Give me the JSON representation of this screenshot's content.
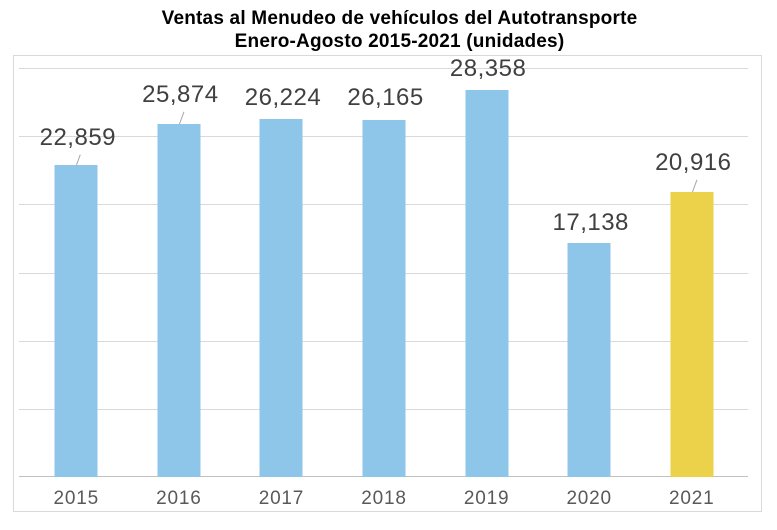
{
  "title": {
    "line1": "Ventas al Menudeo de vehículos del Autotransporte",
    "line2": "Enero-Agosto 2015-2021 (unidades)"
  },
  "colors": {
    "bar_default": "#8DC6E9",
    "bar_highlight": "#EBD24A",
    "gridline": "#d9d9d9",
    "axis_line": "#c0c0c0",
    "plot_border": "#d9d9d9",
    "data_label": "#404040",
    "category_label": "#595959",
    "leader_line": "#a6a6a6",
    "title_text": "#000000"
  },
  "chart_data": {
    "type": "bar",
    "title": "Ventas al Menudeo de vehículos del Autotransporte Enero-Agosto 2015-2021 (unidades)",
    "categories": [
      "2015",
      "2016",
      "2017",
      "2018",
      "2019",
      "2020",
      "2021"
    ],
    "values": [
      22859,
      25874,
      26224,
      26165,
      28358,
      17138,
      20916
    ],
    "labels": [
      "22,859",
      "25,874",
      "26,224",
      "26,165",
      "28,358",
      "17,138",
      "20,916"
    ],
    "highlight_index": 6,
    "ylim": [
      0,
      30000
    ],
    "grid_interval": 5000,
    "grid": true,
    "legend": false,
    "y_axis_labels_visible": false,
    "label_gaps": [
      13,
      15,
      7,
      8,
      7,
      6,
      15
    ],
    "leader_lines": [
      true,
      true,
      false,
      false,
      false,
      false,
      true
    ]
  }
}
